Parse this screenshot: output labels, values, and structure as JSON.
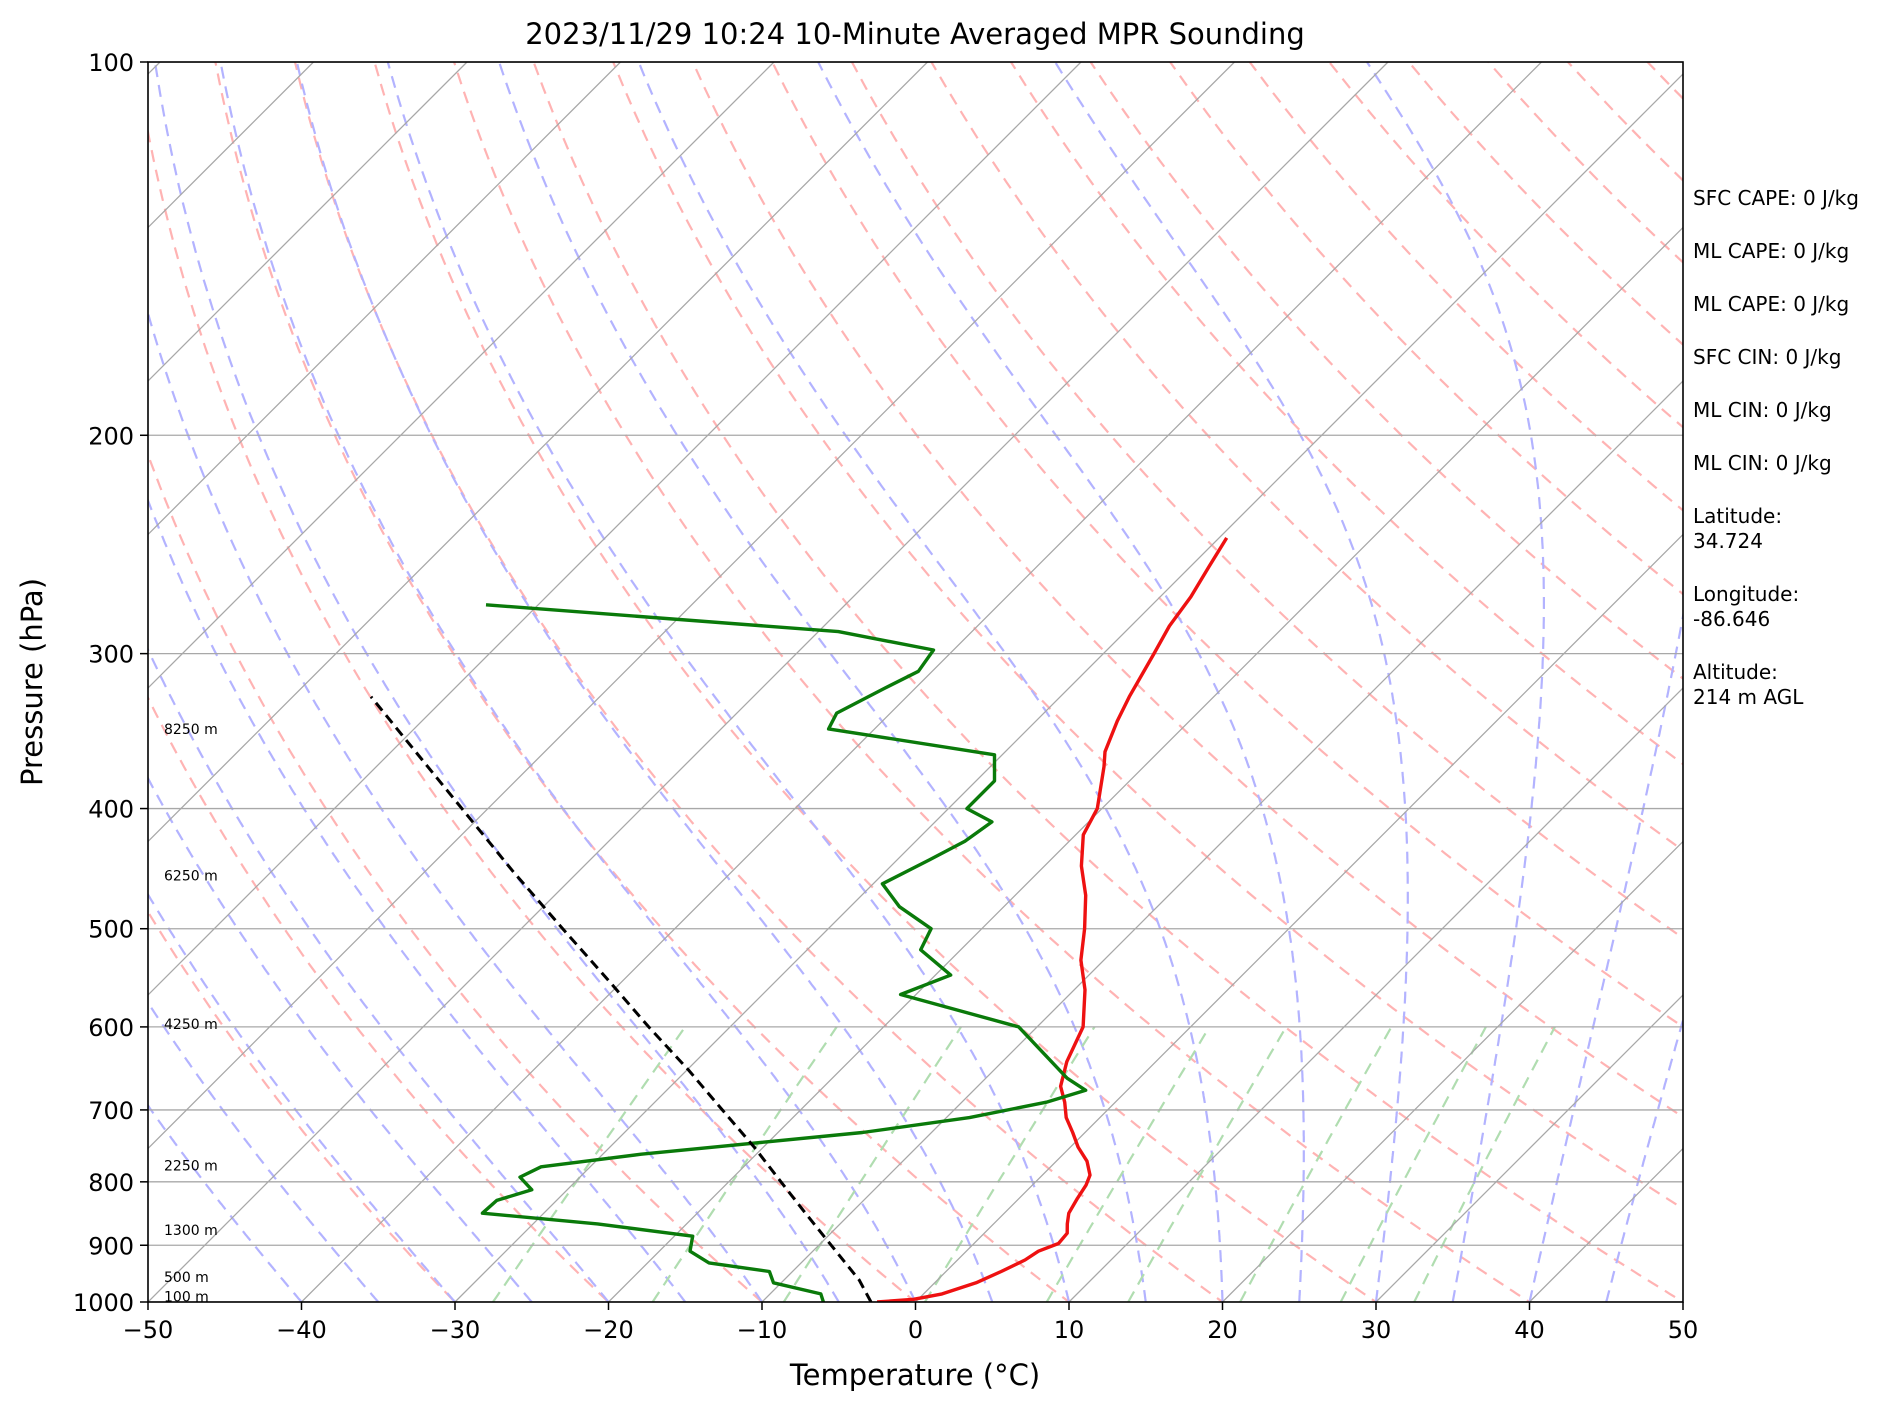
{
  "chart_data": {
    "type": "line",
    "title": "2023/11/29 10:24 10-Minute Averaged MPR Sounding",
    "xlabel": "Temperature (°C)",
    "ylabel": "Pressure (hPa)",
    "xlim": [
      -50,
      50
    ],
    "ylim": [
      1000,
      100
    ],
    "yscale": "log",
    "skew": true,
    "x_ticks": [
      -50,
      -40,
      -30,
      -20,
      -10,
      0,
      10,
      20,
      30,
      40,
      50
    ],
    "x_tick_labels": [
      "−50",
      "−40",
      "−30",
      "−20",
      "−10",
      "0",
      "10",
      "20",
      "30",
      "40",
      "50"
    ],
    "y_ticks": [
      1000,
      900,
      800,
      700,
      600,
      500,
      400,
      300,
      200,
      100
    ],
    "y_tick_labels": [
      "1000",
      "900",
      "800",
      "700",
      "600",
      "500",
      "400",
      "300",
      "200",
      "100"
    ],
    "grid": true,
    "colors": {
      "temperature": "#ee1111",
      "dewpoint": "#0a7a0a",
      "parcel": "#000000",
      "isotherm": "#a8a8a8",
      "dry_adiabat": "#ffb3b3",
      "moist_adiabat": "#b3b3ff",
      "mixing_ratio": "#b0ddb0"
    },
    "series": [
      {
        "role": "temperature",
        "points": [
          [
            1000,
            -2.5
          ],
          [
            995,
            -0.3
          ],
          [
            985,
            1.2
          ],
          [
            965,
            2.7
          ],
          [
            945,
            3.6
          ],
          [
            925,
            4.4
          ],
          [
            910,
            4.7
          ],
          [
            897,
            5.5
          ],
          [
            880,
            5.4
          ],
          [
            865,
            4.8
          ],
          [
            848,
            4.2
          ],
          [
            825,
            3.8
          ],
          [
            805,
            3.5
          ],
          [
            790,
            3.1
          ],
          [
            770,
            2.0
          ],
          [
            750,
            0.5
          ],
          [
            730,
            -0.8
          ],
          [
            710,
            -2.2
          ],
          [
            690,
            -3.3
          ],
          [
            670,
            -4.6
          ],
          [
            640,
            -5.8
          ],
          [
            600,
            -7.0
          ],
          [
            560,
            -9.3
          ],
          [
            530,
            -11.5
          ],
          [
            500,
            -13.3
          ],
          [
            470,
            -15.4
          ],
          [
            445,
            -17.6
          ],
          [
            420,
            -19.5
          ],
          [
            400,
            -20.3
          ],
          [
            370,
            -22.6
          ],
          [
            360,
            -23.5
          ],
          [
            340,
            -24.7
          ],
          [
            325,
            -25.5
          ],
          [
            300,
            -26.7
          ],
          [
            285,
            -27.5
          ],
          [
            270,
            -28.0
          ],
          [
            255,
            -28.8
          ],
          [
            242,
            -29.5
          ]
        ]
      },
      {
        "role": "dewpoint",
        "points": [
          [
            1000,
            -6.0
          ],
          [
            985,
            -6.7
          ],
          [
            965,
            -10.5
          ],
          [
            945,
            -11.5
          ],
          [
            930,
            -16.0
          ],
          [
            910,
            -18.0
          ],
          [
            885,
            -18.8
          ],
          [
            865,
            -25.8
          ],
          [
            848,
            -34.0
          ],
          [
            828,
            -33.9
          ],
          [
            812,
            -32.3
          ],
          [
            793,
            -33.9
          ],
          [
            778,
            -33.2
          ],
          [
            760,
            -27.5
          ],
          [
            730,
            -14.5
          ],
          [
            710,
            -8.5
          ],
          [
            690,
            -4.5
          ],
          [
            675,
            -2.7
          ],
          [
            660,
            -4.7
          ],
          [
            600,
            -11.2
          ],
          [
            565,
            -21.0
          ],
          [
            545,
            -19.0
          ],
          [
            520,
            -22.6
          ],
          [
            500,
            -23.3
          ],
          [
            480,
            -26.8
          ],
          [
            460,
            -29.4
          ],
          [
            440,
            -27.9
          ],
          [
            425,
            -26.8
          ],
          [
            410,
            -26.3
          ],
          [
            400,
            -28.8
          ],
          [
            380,
            -28.8
          ],
          [
            362,
            -30.5
          ],
          [
            345,
            -43.0
          ],
          [
            335,
            -43.5
          ],
          [
            320,
            -42.0
          ],
          [
            310,
            -40.9
          ],
          [
            298,
            -41.3
          ],
          [
            288,
            -48.7
          ],
          [
            274,
            -73.4
          ]
        ]
      },
      {
        "role": "parcel",
        "points": [
          [
            1000,
            -2.9
          ],
          [
            960,
            -5.1
          ],
          [
            920,
            -7.8
          ],
          [
            850,
            -12.8
          ],
          [
            800,
            -16.6
          ],
          [
            750,
            -20.6
          ],
          [
            700,
            -25.1
          ],
          [
            650,
            -29.9
          ],
          [
            600,
            -35.3
          ],
          [
            550,
            -41.0
          ],
          [
            500,
            -47.3
          ],
          [
            450,
            -54.2
          ],
          [
            400,
            -61.7
          ],
          [
            350,
            -70.2
          ],
          [
            325,
            -74.9
          ]
        ]
      }
    ],
    "height_labels": [
      {
        "p": 990,
        "label": "100 m"
      },
      {
        "p": 955,
        "label": "500 m"
      },
      {
        "p": 875,
        "label": "1300 m"
      },
      {
        "p": 776,
        "label": "2250 m"
      },
      {
        "p": 597,
        "label": "4250 m"
      },
      {
        "p": 453,
        "label": "6250 m"
      },
      {
        "p": 345,
        "label": "8250 m"
      }
    ],
    "annotations": [
      "SFC CAPE: 0 J/kg",
      "ML CAPE: 0 J/kg",
      "ML CAPE: 0 J/kg",
      "SFC CIN: 0 J/kg",
      "ML CIN: 0 J/kg",
      "ML CIN: 0 J/kg"
    ],
    "location": {
      "latitude_label": "Latitude:",
      "latitude": "34.724",
      "longitude_label": "Longitude:",
      "longitude": "-86.646",
      "altitude_label": "Altitude:",
      "altitude": "214 m AGL"
    }
  }
}
